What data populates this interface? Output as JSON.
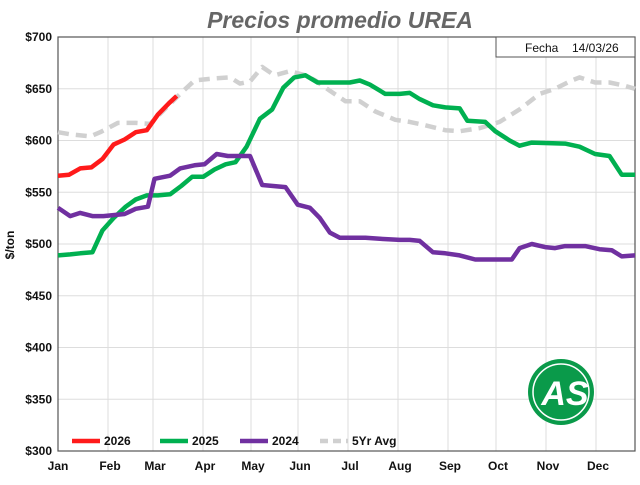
{
  "chart_data": {
    "type": "line",
    "title": "Precios promedio UREA",
    "date_label": "Fecha",
    "date_value": "14/03/26",
    "xlabel": "",
    "ylabel": "$/ton",
    "x_unit": "week of year",
    "xlim": [
      0,
      52
    ],
    "ylim": [
      300,
      700
    ],
    "yticks": [
      700,
      650,
      600,
      550,
      500,
      450,
      400,
      350,
      300
    ],
    "ytick_labels": [
      "$700",
      "$650",
      "$600",
      "$550",
      "$500",
      "$450",
      "$400",
      "$350",
      "$300"
    ],
    "xtick_labels": [
      "Jan",
      "Feb",
      "Mar",
      "Apr",
      "May",
      "Jun",
      "Jul",
      "Aug",
      "Sep",
      "Oct",
      "Nov",
      "Dec"
    ],
    "grid": true,
    "legend_position": "bottom-left",
    "logo_text": "AS",
    "series": [
      {
        "name": "2026",
        "color": "#ff1a1a",
        "dashed": false,
        "x": [
          0,
          1,
          2,
          3,
          4,
          5,
          6,
          7,
          8,
          9,
          10,
          10.7
        ],
        "y": [
          566,
          567,
          573,
          574,
          582,
          596,
          601,
          608,
          610,
          625,
          636,
          643
        ]
      },
      {
        "name": "2025",
        "color": "#00b050",
        "dashed": false,
        "x": [
          0,
          1.1,
          2,
          3.1,
          4,
          5,
          6.1,
          7,
          8,
          9,
          10.1,
          11.1,
          12.1,
          13.1,
          14.1,
          15.1,
          16,
          17,
          18.2,
          19.3,
          20.3,
          21.3,
          22.3,
          23.4,
          24.5,
          26.3,
          27.2,
          28.1,
          29.5,
          30.8,
          31.7,
          32.6,
          33.8,
          34.9,
          36.2,
          36.9,
          38.5,
          39.4,
          40.7,
          41.6,
          42.7,
          45.7,
          47,
          48.4,
          49.7,
          50.8,
          52
        ],
        "y": [
          489,
          490,
          491,
          492,
          513,
          525,
          536,
          543,
          547,
          547,
          548,
          556,
          565,
          565,
          572,
          577,
          579,
          594,
          621,
          630,
          651,
          661,
          663,
          656,
          656,
          656,
          658,
          654,
          645,
          645,
          646,
          640,
          634,
          632,
          631,
          619,
          618,
          609,
          600,
          595,
          598,
          597,
          594,
          587,
          585,
          567,
          567
        ]
      },
      {
        "name": "2024",
        "color": "#7030a0",
        "dashed": false,
        "x": [
          0,
          1.1,
          2,
          3.1,
          4.1,
          5.1,
          6,
          7,
          8.1,
          8.7,
          10.1,
          11,
          12.3,
          13.2,
          14.3,
          15.3,
          17.3,
          18.4,
          20.5,
          21.6,
          22.7,
          23.6,
          24.5,
          25.4,
          26.5,
          27.7,
          29,
          30.8,
          31.7,
          32.6,
          33.8,
          34.9,
          36.2,
          37.6,
          39.8,
          40.9,
          41.6,
          42.7,
          43.9,
          44.8,
          45.7,
          47.5,
          48.8,
          49.9,
          50.8,
          52
        ],
        "y": [
          535,
          527,
          530,
          527,
          527,
          528,
          529,
          534,
          536,
          563,
          566,
          573,
          576,
          577,
          587,
          585,
          585,
          557,
          555,
          538,
          535,
          525,
          511,
          506,
          506,
          506,
          505,
          504,
          504,
          503,
          492,
          491,
          489,
          485,
          485,
          485,
          496,
          500,
          497,
          496,
          498,
          498,
          495,
          494,
          488,
          489
        ]
      },
      {
        "name": "5Yr Avg",
        "color": "#d0d0d0",
        "dashed": true,
        "x": [
          0,
          1.1,
          2.9,
          3.8,
          5.4,
          7,
          8.3,
          9.6,
          11,
          12.3,
          14.1,
          15.5,
          16.4,
          17.3,
          18.4,
          19.5,
          20.9,
          22.3,
          23.2,
          24.5,
          25.9,
          27.2,
          28.6,
          30.4,
          31.7,
          33,
          34.9,
          36.2,
          38,
          39.8,
          41.6,
          43.4,
          44.8,
          46.1,
          47,
          48.4,
          49.7,
          51,
          52
        ],
        "y": [
          608,
          606,
          604,
          608,
          617,
          617,
          616,
          630,
          645,
          658,
          660,
          661,
          655,
          657,
          671,
          663,
          667,
          663,
          658,
          648,
          638,
          638,
          628,
          620,
          618,
          615,
          610,
          609,
          612,
          618,
          630,
          645,
          650,
          657,
          661,
          656,
          656,
          653,
          650
        ]
      }
    ]
  }
}
